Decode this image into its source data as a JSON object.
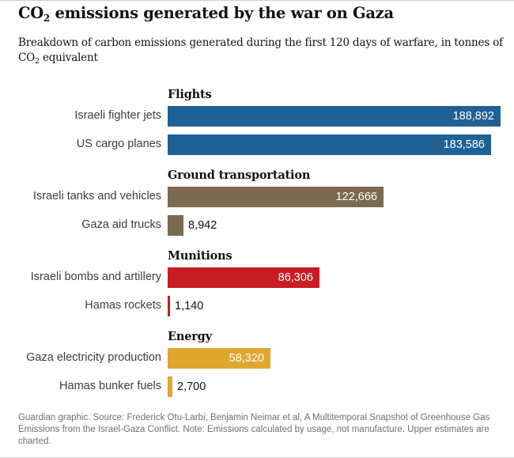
{
  "title": {
    "main": "CO",
    "sub": "2",
    "rest": " emissions generated by the war on Gaza"
  },
  "subtitle": {
    "main": "Breakdown of carbon emissions generated during the first 120 days of warfare, in tonnes of CO",
    "sub": "2",
    "rest": " equivalent"
  },
  "footnote": "Guardian graphic. Source: Frederick Otu-Larbi, Benjamin Neimar et al, A Multitemporal Snapshot of Greenhouse Gas Emissions from the Israel-Gaza Conflict. Note: Emissions calculated by usage, not manufacture. Upper estimates are charted.",
  "chart_data": {
    "type": "bar",
    "orientation": "horizontal",
    "title": "CO2 emissions generated by the war on Gaza",
    "subtitle": "Breakdown of carbon emissions generated during the first 120 days of warfare, in tonnes of CO2 equivalent",
    "unit": "tonnes of CO2 equivalent",
    "xlim": [
      0,
      188892
    ],
    "groups": [
      {
        "name": "Flights",
        "color": "#1f6195",
        "items": [
          {
            "label": "Israeli fighter jets",
            "value": 188892,
            "display": "188,892"
          },
          {
            "label": "US cargo planes",
            "value": 183586,
            "display": "183,586"
          }
        ]
      },
      {
        "name": "Ground transportation",
        "color": "#7b6a50",
        "items": [
          {
            "label": "Israeli tanks and vehicles",
            "value": 122666,
            "display": "122,666"
          },
          {
            "label": "Gaza aid trucks",
            "value": 8942,
            "display": "8,942"
          }
        ]
      },
      {
        "name": "Munitions",
        "color": "#c81d25",
        "items": [
          {
            "label": "Israeli bombs and artillery",
            "value": 86306,
            "display": "86,306"
          },
          {
            "label": "Hamas rockets",
            "value": 1140,
            "display": "1,140"
          }
        ]
      },
      {
        "name": "Energy",
        "color": "#e0a630",
        "items": [
          {
            "label": "Gaza electricity production",
            "value": 58320,
            "display": "58,320"
          },
          {
            "label": "Hamas bunker fuels",
            "value": 2700,
            "display": "2,700"
          }
        ]
      }
    ]
  }
}
